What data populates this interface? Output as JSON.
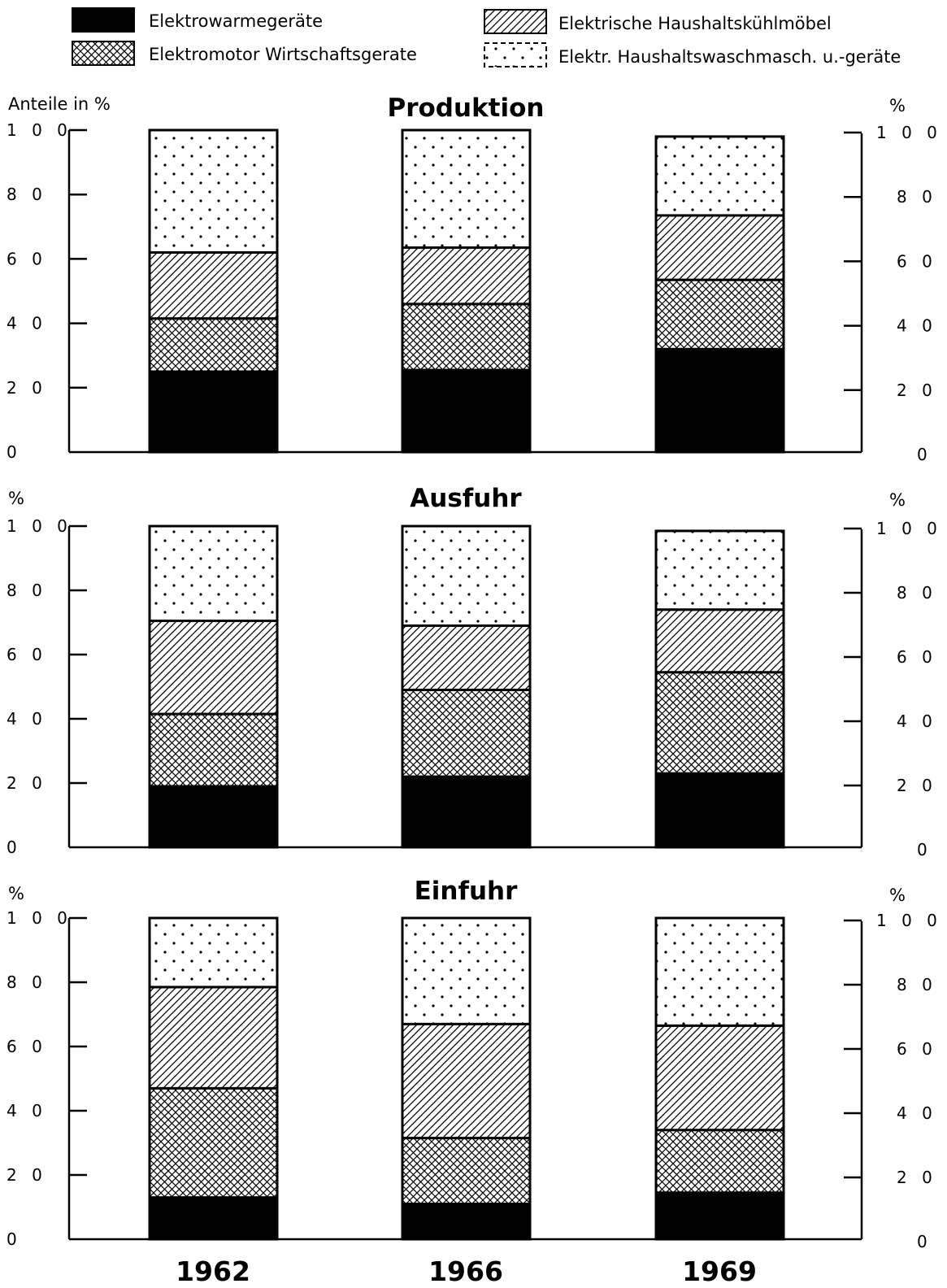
{
  "chart_data": {
    "type": "bar",
    "stacked": true,
    "categories": [
      "1962",
      "1966",
      "1969"
    ],
    "ylim": [
      0,
      100
    ],
    "yticks": [
      "0",
      "2 0",
      "4 0",
      "6 0",
      "8 0",
      "1 0 0"
    ],
    "legend": {
      "placement": "top",
      "items": [
        {
          "label": "Elektrowarmegeräte",
          "pattern": "solid"
        },
        {
          "label": "Elektrische Haushaltskühlmöbel",
          "pattern": "hatch"
        },
        {
          "label": "Elektromotor Wirtschaftsgerate",
          "pattern": "crosshatch"
        },
        {
          "label": "Elektr. Haushaltswaschmasch. u.-geräte",
          "pattern": "dots"
        }
      ]
    },
    "series_order": [
      "Elektrowarmegeräte",
      "Elektromotor Wirtschaftsgerate",
      "Elektrische Haushaltskühlmöbel",
      "Elektr. Haushaltswaschmasch. u.-geräte"
    ],
    "panels": [
      {
        "title": "Produktion",
        "ylabel_left": "Anteile in %",
        "ylabel_right": "%",
        "series": [
          {
            "name": "Elektrowarmegeräte",
            "values": [
              25,
              25.5,
              32
            ]
          },
          {
            "name": "Elektromotor Wirtschaftsgerate",
            "values": [
              16.5,
              20.5,
              21.5
            ]
          },
          {
            "name": "Elektrische Haushaltskühlmöbel",
            "values": [
              20.5,
              17.5,
              20
            ]
          },
          {
            "name": "Elektr. Haushaltswaschmasch. u.-geräte",
            "values": [
              38,
              36.5,
              24.5
            ]
          }
        ]
      },
      {
        "title": "Ausfuhr",
        "ylabel_left": "%",
        "ylabel_right": "%",
        "series": [
          {
            "name": "Elektrowarmegeräte",
            "values": [
              19,
              22,
              23
            ]
          },
          {
            "name": "Elektromotor Wirtschaftsgerate",
            "values": [
              22.5,
              27,
              31.5
            ]
          },
          {
            "name": "Elektrische Haushaltskühlmöbel",
            "values": [
              29,
              20,
              19.5
            ]
          },
          {
            "name": "Elektr. Haushaltswaschmasch. u.-geräte",
            "values": [
              29.5,
              31,
              24.5
            ]
          }
        ]
      },
      {
        "title": "Einfuhr",
        "ylabel_left": "%",
        "ylabel_right": "%",
        "series": [
          {
            "name": "Elektrowarmegeräte",
            "values": [
              13,
              11,
              14.5
            ]
          },
          {
            "name": "Elektromotor Wirtschaftsgerate",
            "values": [
              34,
              20.5,
              19.5
            ]
          },
          {
            "name": "Elektrische Haushaltskühlmöbel",
            "values": [
              31.5,
              35.5,
              32.5
            ]
          },
          {
            "name": "Elektr. Haushaltswaschmasch. u.-geräte",
            "values": [
              21.5,
              33,
              33.5
            ]
          }
        ]
      }
    ]
  }
}
